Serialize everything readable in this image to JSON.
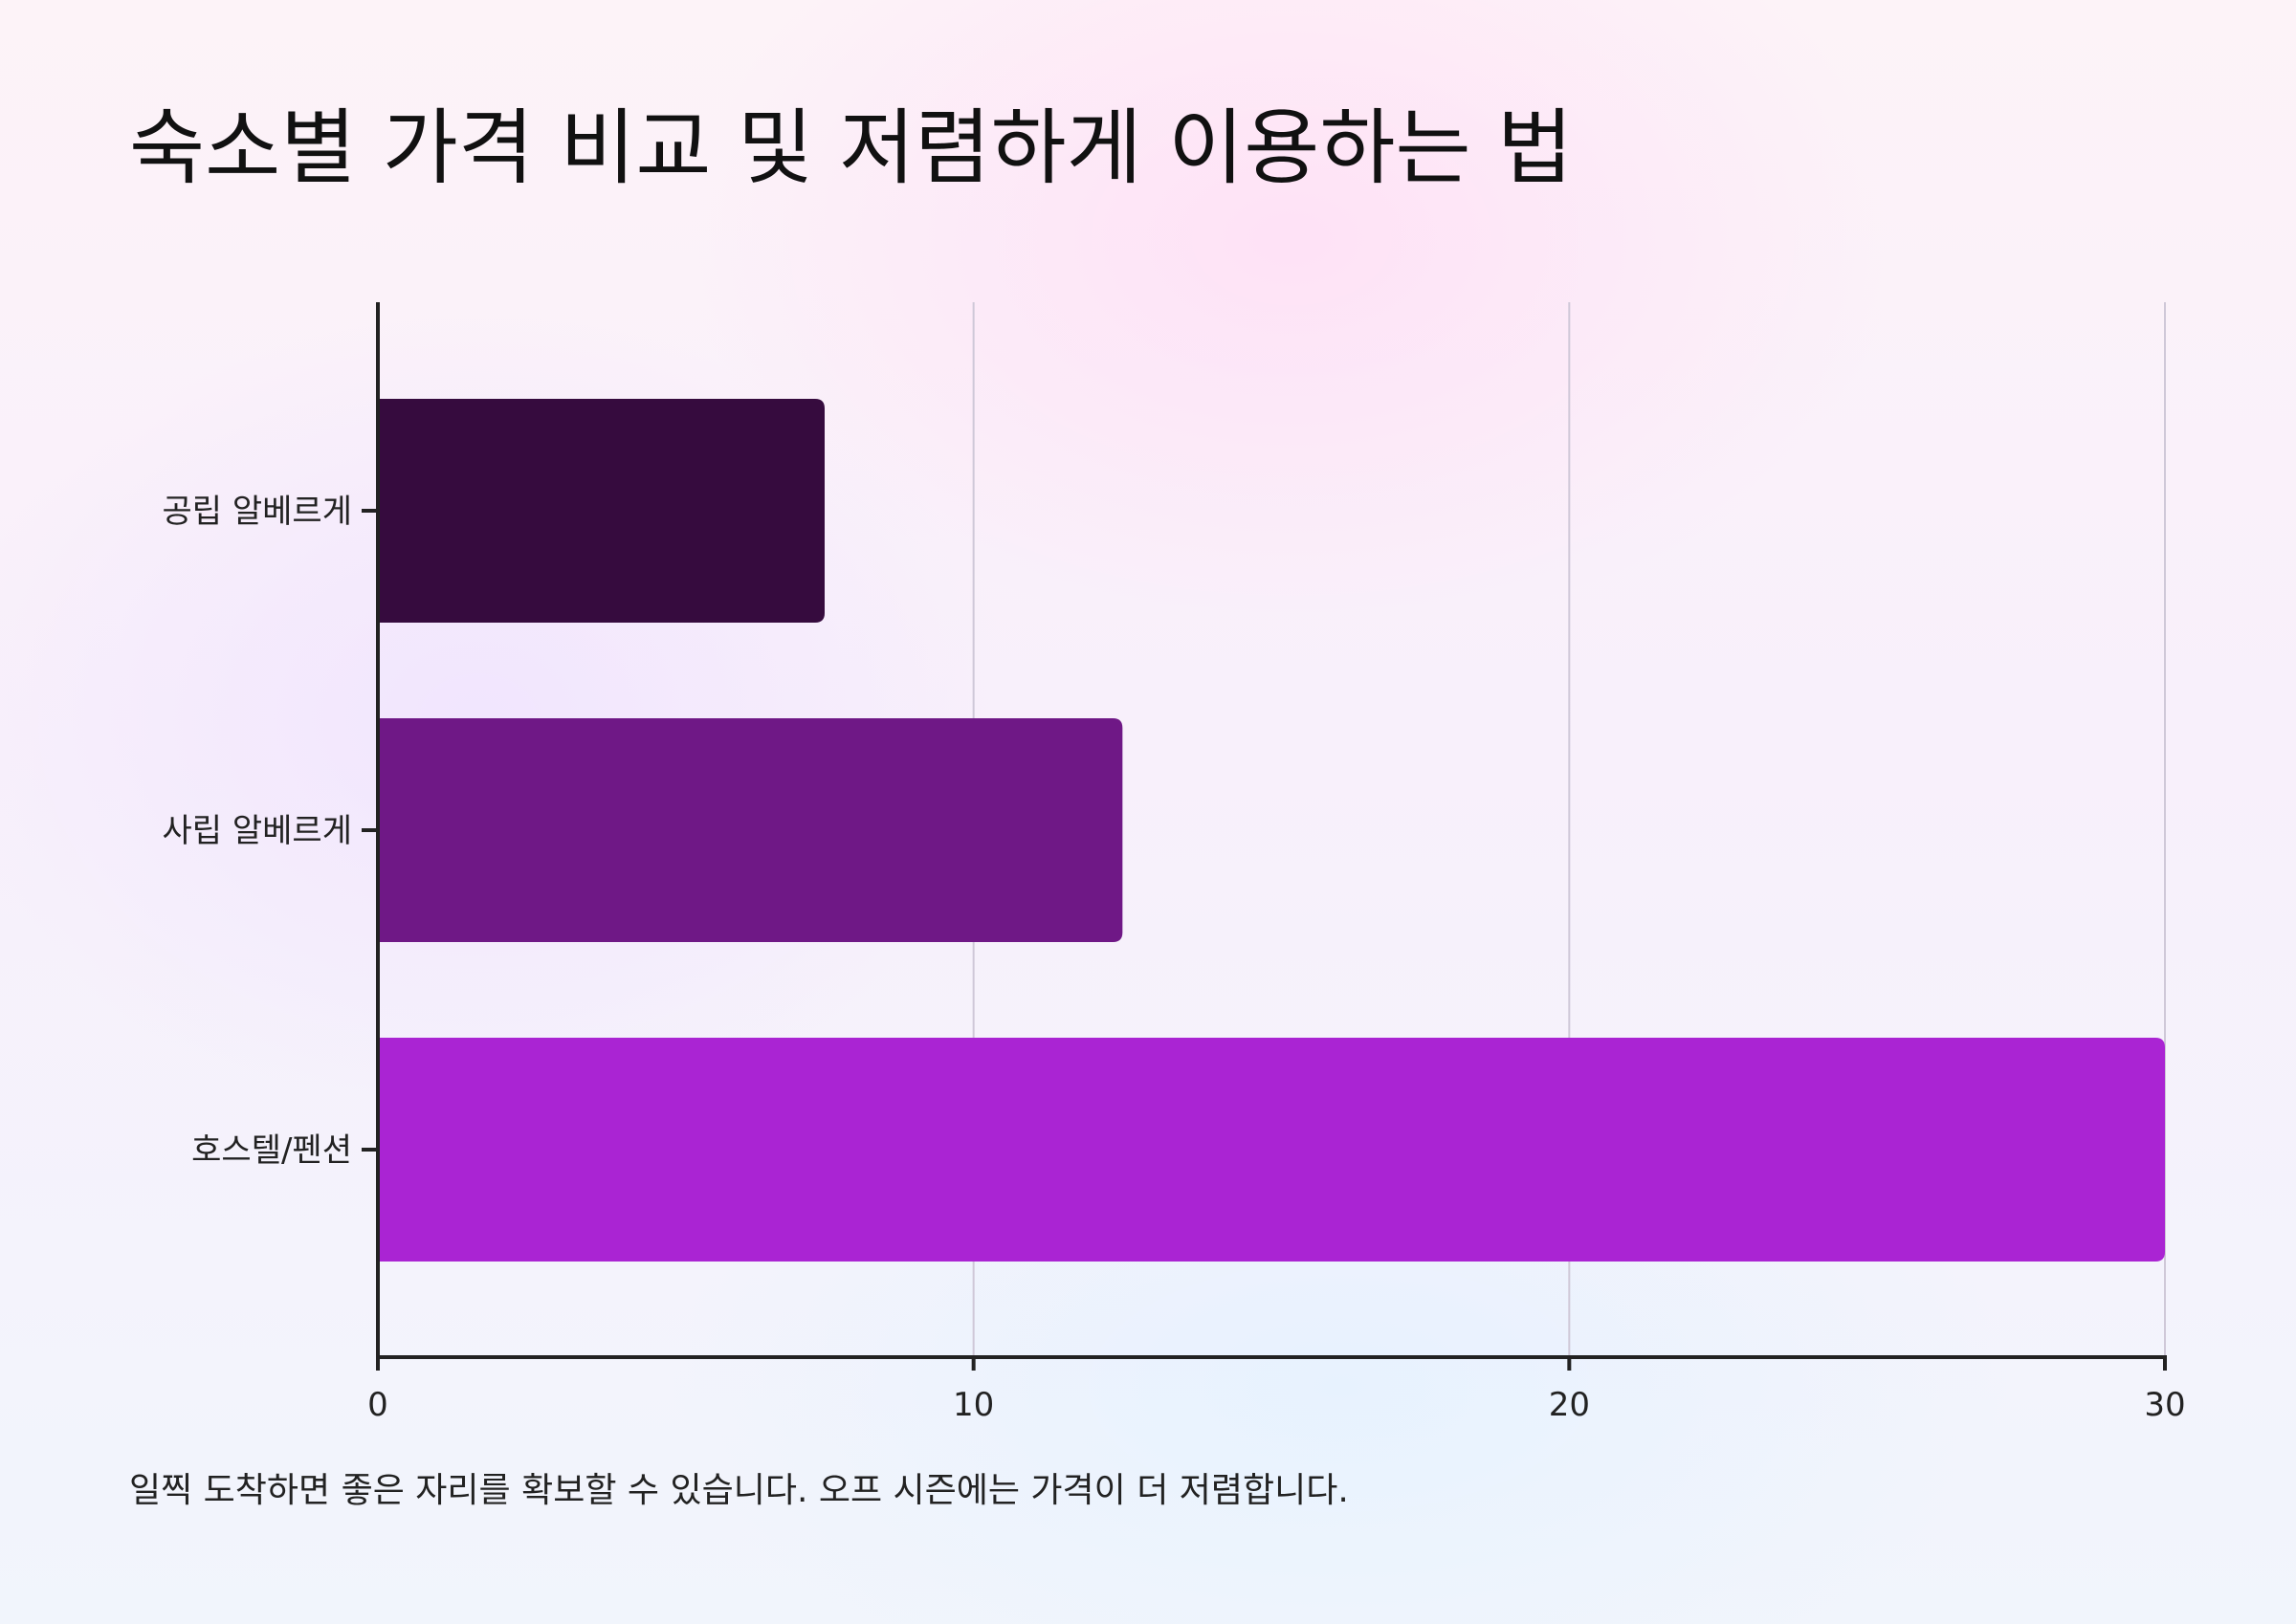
{
  "title": "숙소별 가격 비교 및 저렴하게 이용하는 법",
  "footnote": "일찍 도착하면 좋은 자리를 확보할 수 있습니다. 오프 시즌에는 가격이 더 저렴합니다.",
  "chart_data": {
    "type": "bar",
    "orientation": "horizontal",
    "title": "숙소별 가격 비교 및 저렴하게 이용하는 법",
    "xlabel": "",
    "ylabel": "",
    "categories": [
      "공립 알베르게",
      "사립 알베르게",
      "호스텔/펜션"
    ],
    "values": [
      7.5,
      12.5,
      30
    ],
    "colors": [
      "#360b3e",
      "#6f1886",
      "#aa24d3"
    ],
    "xlim": [
      0,
      30
    ],
    "xticks": [
      "0",
      "10",
      "20",
      "30"
    ],
    "grid": "vertical",
    "legend": "none"
  }
}
